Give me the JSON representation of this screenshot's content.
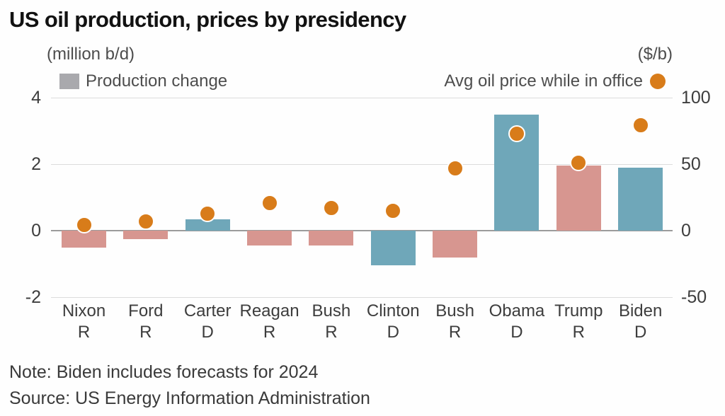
{
  "title": "US oil production, prices by presidency",
  "axis_units": {
    "left": "(million b/d)",
    "right": "($/b)"
  },
  "legend": {
    "bar_label": "Production change",
    "dot_label": "Avg oil price while in office"
  },
  "footnotes": {
    "note": "Note: Biden includes forecasts for 2024",
    "source": "Source: US Energy Information Administration"
  },
  "colors": {
    "republican_bar": "#d79690",
    "democrat_bar": "#6fa7b9",
    "price_dot": "#d87c1a",
    "dot_ring": "#ffffff",
    "legend_swatch": "#a9a9ad",
    "gridline": "#dcdcdc",
    "zero_line": "#9b9b9b",
    "title_text": "#121212",
    "label_text": "#4d4d4d",
    "tick_text": "#3d3d3d"
  },
  "chart_data": {
    "type": "bar",
    "title": "US oil production, prices by presidency",
    "categories": [
      "Nixon",
      "Ford",
      "Carter",
      "Reagan",
      "Bush",
      "Clinton",
      "Bush",
      "Obama",
      "Trump",
      "Biden"
    ],
    "parties": [
      "R",
      "R",
      "D",
      "R",
      "R",
      "D",
      "R",
      "D",
      "R",
      "D"
    ],
    "series": [
      {
        "name": "Production change",
        "type": "bar",
        "axis": "left",
        "unit": "million b/d",
        "color_by": "party",
        "values": [
          -0.5,
          -0.25,
          0.35,
          -0.45,
          -0.45,
          -1.05,
          -0.8,
          3.5,
          1.95,
          1.9
        ]
      },
      {
        "name": "Avg oil price while in office",
        "type": "scatter",
        "axis": "right",
        "unit": "$/b",
        "values": [
          4,
          7,
          13,
          21,
          17,
          15,
          47,
          73,
          51,
          79
        ]
      }
    ],
    "left_axis": {
      "label": "(million b/d)",
      "ticks": [
        4,
        2,
        0,
        -2
      ],
      "range": [
        -2,
        4
      ]
    },
    "right_axis": {
      "label": "($/b)",
      "ticks": [
        100,
        50,
        0,
        -50
      ],
      "range": [
        -50,
        100
      ]
    },
    "grid": true,
    "legend_position": "top",
    "note": "Note: Biden includes forecasts for 2024",
    "source": "Source: US Energy Information Administration"
  }
}
